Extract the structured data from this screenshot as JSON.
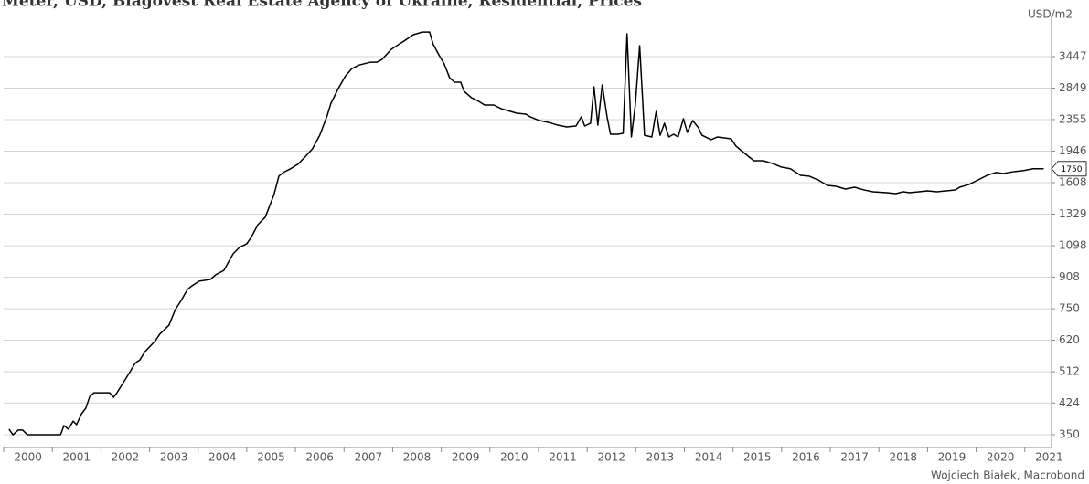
{
  "chart_data": {
    "type": "line",
    "title": "Meter, USD, Blagovest Real Estate Agency of Ukraine, Residential, Prices",
    "y_axis_label": "USD/m2",
    "source": "Wojciech Białek, Macrobond",
    "log_scale": true,
    "grid": true,
    "color": "#000000",
    "xlim": [
      2000,
      2021.55
    ],
    "xticks": [
      2000,
      2001,
      2002,
      2003,
      2004,
      2005,
      2006,
      2007,
      2008,
      2009,
      2010,
      2011,
      2012,
      2013,
      2014,
      2015,
      2016,
      2017,
      2018,
      2019,
      2020,
      2021
    ],
    "ylim": [
      324,
      4395
    ],
    "yticks": [
      350,
      424,
      512,
      620,
      750,
      908,
      1098,
      1329,
      1608,
      1946,
      2355,
      2849,
      3447
    ],
    "x": [
      2000.11,
      2000.19,
      2000.3,
      2000.39,
      2000.49,
      2001.17,
      2001.24,
      2001.33,
      2001.43,
      2001.5,
      2001.6,
      2001.69,
      2001.77,
      2001.86,
      2002.18,
      2002.26,
      2002.33,
      2002.59,
      2002.71,
      2002.8,
      2002.91,
      2003.12,
      2003.21,
      2003.4,
      2003.53,
      2003.65,
      2003.78,
      2003.87,
      2004.02,
      2004.25,
      2004.36,
      2004.53,
      2004.72,
      2004.85,
      2005.0,
      2005.09,
      2005.23,
      2005.38,
      2005.56,
      2005.66,
      2005.75,
      2005.9,
      2006.05,
      2006.18,
      2006.35,
      2006.5,
      2006.65,
      2006.73,
      2006.88,
      2007.03,
      2007.16,
      2007.31,
      2007.54,
      2007.67,
      2007.78,
      2007.97,
      2008.14,
      2008.23,
      2008.42,
      2008.61,
      2008.76,
      2008.83,
      2008.95,
      2009.06,
      2009.17,
      2009.27,
      2009.4,
      2009.47,
      2009.62,
      2009.77,
      2009.89,
      2010.08,
      2010.23,
      2010.36,
      2010.55,
      2010.74,
      2010.83,
      2011.02,
      2011.2,
      2011.39,
      2011.58,
      2011.77,
      2011.88,
      2011.95,
      2012.07,
      2012.14,
      2012.22,
      2012.31,
      2012.41,
      2012.48,
      2012.63,
      2012.74,
      2012.82,
      2012.91,
      2012.99,
      2013.08,
      2013.18,
      2013.33,
      2013.42,
      2013.5,
      2013.59,
      2013.68,
      2013.78,
      2013.87,
      2013.98,
      2014.06,
      2014.17,
      2014.29,
      2014.36,
      2014.55,
      2014.68,
      2014.96,
      2015.06,
      2015.24,
      2015.43,
      2015.62,
      2015.81,
      2016.0,
      2016.18,
      2016.39,
      2016.56,
      2016.75,
      2016.94,
      2017.12,
      2017.31,
      2017.5,
      2017.69,
      2017.88,
      2018.16,
      2018.35,
      2018.5,
      2018.63,
      2018.82,
      2019.0,
      2019.19,
      2019.38,
      2019.57,
      2019.66,
      2019.85,
      2020.04,
      2020.23,
      2020.41,
      2020.56,
      2020.79,
      2020.98,
      2021.17,
      2021.39
    ],
    "values": [
      362,
      350,
      360,
      360,
      350,
      350,
      370,
      362,
      380,
      372,
      397,
      411,
      441,
      451,
      451,
      439,
      451,
      510,
      541,
      550,
      579,
      618,
      643,
      679,
      746,
      788,
      843,
      861,
      886,
      895,
      921,
      946,
      1046,
      1087,
      1111,
      1155,
      1248,
      1305,
      1497,
      1673,
      1710,
      1749,
      1797,
      1868,
      1973,
      2142,
      2404,
      2597,
      2839,
      3067,
      3205,
      3276,
      3331,
      3331,
      3387,
      3599,
      3721,
      3783,
      3932,
      3998,
      3998,
      3721,
      3485,
      3298,
      3036,
      2953,
      2953,
      2794,
      2689,
      2630,
      2572,
      2572,
      2516,
      2488,
      2447,
      2434,
      2394,
      2341,
      2316,
      2278,
      2253,
      2265,
      2394,
      2265,
      2303,
      2872,
      2278,
      2904,
      2394,
      2155,
      2155,
      2167,
      3958,
      2120,
      2572,
      3684,
      2142,
      2120,
      2474,
      2142,
      2303,
      2120,
      2155,
      2120,
      2367,
      2180,
      2341,
      2240,
      2142,
      2085,
      2120,
      2097,
      2006,
      1919,
      1836,
      1836,
      1806,
      1766,
      1749,
      1681,
      1673,
      1635,
      1582,
      1573,
      1547,
      1564,
      1539,
      1522,
      1513,
      1505,
      1522,
      1513,
      1522,
      1530,
      1522,
      1530,
      1539,
      1564,
      1590,
      1635,
      1681,
      1710,
      1700,
      1720,
      1730,
      1749,
      1750
    ]
  }
}
